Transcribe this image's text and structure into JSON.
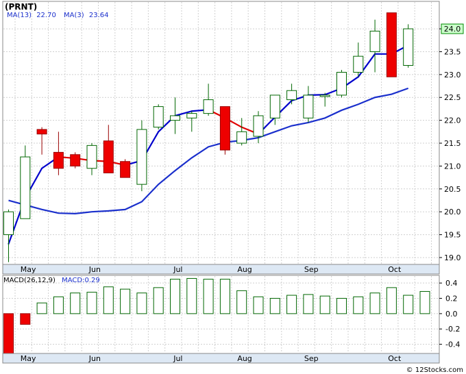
{
  "chart_data": [
    {
      "type": "candlestick",
      "title": "(PRNT)",
      "legend": {
        "ma13_label": "MA(13)",
        "ma13_value": "22.70",
        "ma3_label": "MA(3)",
        "ma3_value": "23.64"
      },
      "ylim": [
        18.85,
        24.6
      ],
      "y_ticks": [
        19.0,
        19.5,
        20.0,
        20.5,
        21.0,
        21.5,
        22.0,
        22.5,
        23.0,
        23.5,
        24.0
      ],
      "y_tick_labels": [
        "19.0",
        "19.5",
        "20.0",
        "20.5",
        "21.0",
        "21.5",
        "22.0",
        "22.5",
        "23.0",
        "23.5",
        "24.0"
      ],
      "last_price_label": "24.0",
      "last_price": 24.0,
      "month_labels": [
        "May",
        "Jun",
        "Jul",
        "Aug",
        "Sep",
        "Oct"
      ],
      "month_positions": [
        1.2,
        5.2,
        10.2,
        14.2,
        18.2,
        23.2
      ],
      "candles": [
        {
          "o": 19.5,
          "c": 20.0,
          "h": 20.05,
          "l": 18.9
        },
        {
          "o": 19.85,
          "c": 21.2,
          "h": 21.45,
          "l": 19.85
        },
        {
          "o": 21.8,
          "c": 21.7,
          "h": 21.85,
          "l": 21.25
        },
        {
          "o": 21.3,
          "c": 20.95,
          "h": 21.75,
          "l": 20.8
        },
        {
          "o": 21.25,
          "c": 21.0,
          "h": 21.3,
          "l": 20.95
        },
        {
          "o": 20.95,
          "c": 21.45,
          "h": 21.5,
          "l": 20.8
        },
        {
          "o": 21.55,
          "c": 20.85,
          "h": 21.9,
          "l": 20.85
        },
        {
          "o": 21.1,
          "c": 20.75,
          "h": 21.15,
          "l": 20.75
        },
        {
          "o": 20.6,
          "c": 21.8,
          "h": 22.0,
          "l": 20.45
        },
        {
          "o": 21.85,
          "c": 22.3,
          "h": 22.35,
          "l": 21.8
        },
        {
          "o": 22.0,
          "c": 22.1,
          "h": 22.5,
          "l": 21.7
        },
        {
          "o": 22.05,
          "c": 22.15,
          "h": 22.2,
          "l": 21.75
        },
        {
          "o": 22.15,
          "c": 22.45,
          "h": 22.8,
          "l": 22.1
        },
        {
          "o": 22.3,
          "c": 21.35,
          "h": 22.3,
          "l": 21.25
        },
        {
          "o": 21.5,
          "c": 21.75,
          "h": 22.05,
          "l": 21.45
        },
        {
          "o": 21.65,
          "c": 22.1,
          "h": 22.2,
          "l": 21.5
        },
        {
          "o": 22.05,
          "c": 22.55,
          "h": 22.55,
          "l": 21.9
        },
        {
          "o": 22.45,
          "c": 22.65,
          "h": 22.8,
          "l": 22.35
        },
        {
          "o": 22.05,
          "c": 22.55,
          "h": 22.75,
          "l": 21.95
        },
        {
          "o": 22.55,
          "c": 22.55,
          "h": 22.6,
          "l": 22.3
        },
        {
          "o": 22.55,
          "c": 23.05,
          "h": 23.1,
          "l": 22.5
        },
        {
          "o": 23.05,
          "c": 23.4,
          "h": 23.7,
          "l": 22.95
        },
        {
          "o": 23.5,
          "c": 23.95,
          "h": 24.2,
          "l": 23.05
        },
        {
          "o": 24.35,
          "c": 22.95,
          "h": 24.35,
          "l": 22.95
        },
        {
          "o": 23.2,
          "c": 24.0,
          "h": 24.1,
          "l": 23.15
        }
      ],
      "ma13": [
        {
          "i": 0,
          "v": 20.25
        },
        {
          "i": 1,
          "v": 20.15
        },
        {
          "i": 2,
          "v": 20.05
        },
        {
          "i": 3,
          "v": 19.97
        },
        {
          "i": 4,
          "v": 19.96
        },
        {
          "i": 5,
          "v": 20.0
        },
        {
          "i": 6,
          "v": 20.02
        },
        {
          "i": 7,
          "v": 20.05
        },
        {
          "i": 8,
          "v": 20.22
        },
        {
          "i": 9,
          "v": 20.6
        },
        {
          "i": 10,
          "v": 20.9
        },
        {
          "i": 11,
          "v": 21.18
        },
        {
          "i": 12,
          "v": 21.42
        },
        {
          "i": 13,
          "v": 21.52
        },
        {
          "i": 14,
          "v": 21.56
        },
        {
          "i": 15,
          "v": 21.62
        },
        {
          "i": 16,
          "v": 21.75
        },
        {
          "i": 17,
          "v": 21.88
        },
        {
          "i": 18,
          "v": 21.95
        },
        {
          "i": 19,
          "v": 22.05
        },
        {
          "i": 20,
          "v": 22.22
        },
        {
          "i": 21,
          "v": 22.35
        },
        {
          "i": 22,
          "v": 22.5
        },
        {
          "i": 23,
          "v": 22.57
        },
        {
          "i": 24,
          "v": 22.7
        }
      ],
      "ma3": [
        {
          "i": 0,
          "v": 19.3
        },
        {
          "i": 1,
          "v": 20.3
        },
        {
          "i": 2,
          "v": 20.95
        },
        {
          "i": 3,
          "v": 21.2
        },
        {
          "i": 4,
          "v": 21.17
        },
        {
          "i": 5,
          "v": 21.12
        },
        {
          "i": 6,
          "v": 21.1
        },
        {
          "i": 7,
          "v": 21.02
        },
        {
          "i": 8,
          "v": 21.12
        },
        {
          "i": 9,
          "v": 21.75
        },
        {
          "i": 10,
          "v": 22.1
        },
        {
          "i": 11,
          "v": 22.2
        },
        {
          "i": 12,
          "v": 22.23
        },
        {
          "i": 13,
          "v": 22.05
        },
        {
          "i": 14,
          "v": 21.85
        },
        {
          "i": 15,
          "v": 21.7
        },
        {
          "i": 16,
          "v": 22.07
        },
        {
          "i": 17,
          "v": 22.43
        },
        {
          "i": 18,
          "v": 22.55
        },
        {
          "i": 19,
          "v": 22.56
        },
        {
          "i": 20,
          "v": 22.7
        },
        {
          "i": 21,
          "v": 22.95
        },
        {
          "i": 22,
          "v": 23.45
        },
        {
          "i": 23,
          "v": 23.45
        },
        {
          "i": 24,
          "v": 23.64
        }
      ],
      "ma3_below_color": "#0000cc",
      "ma3_above_color": "#e00000",
      "ma13_color": "#1a2fcc",
      "up_color": "#ffffff",
      "up_border_color": "#006600",
      "down_color": "#ee0000",
      "down_border_color": "#990000"
    },
    {
      "type": "bar",
      "title": "MACD(26,12,9)",
      "value_label": "MACD:0.29",
      "ylim": [
        -0.52,
        0.5
      ],
      "y_ticks": [
        0.4,
        0.2,
        0.0,
        -0.2,
        -0.4
      ],
      "y_tick_labels": [
        "0.4",
        "0.2",
        "0.0",
        "-0.2",
        "-0.4"
      ],
      "month_labels": [
        "May",
        "Jun",
        "Jul",
        "Aug",
        "Sep",
        "Oct"
      ],
      "values": [
        -0.52,
        -0.14,
        0.14,
        0.22,
        0.27,
        0.28,
        0.35,
        0.32,
        0.27,
        0.34,
        0.45,
        0.46,
        0.45,
        0.45,
        0.3,
        0.22,
        0.2,
        0.24,
        0.25,
        0.23,
        0.2,
        0.22,
        0.27,
        0.34,
        0.24,
        0.29
      ],
      "positive_color": "#ffffff",
      "positive_border_color": "#006600",
      "negative_color": "#ee0000",
      "negative_border_color": "#990000"
    }
  ],
  "footer": "© 12Stocks.com"
}
